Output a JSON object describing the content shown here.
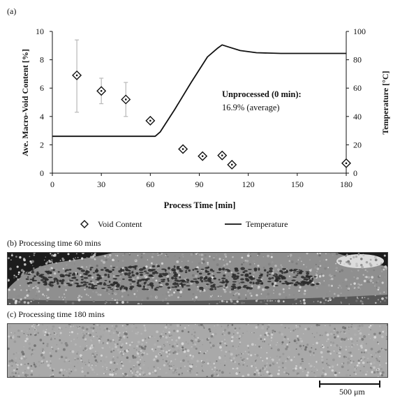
{
  "chart_data": {
    "type": "scatter+line",
    "panel_label": "(a)",
    "x": {
      "label": "Process Time [min]",
      "lim": [
        0,
        180
      ],
      "ticks": [
        0,
        30,
        60,
        90,
        120,
        150,
        180
      ]
    },
    "y_left": {
      "label": "Ave. Macro-Void Content [%]",
      "lim": [
        0,
        10
      ],
      "ticks": [
        0,
        2,
        4,
        6,
        8,
        10
      ]
    },
    "y_right": {
      "label": "Temperature [°C]",
      "lim": [
        0,
        100
      ],
      "ticks": [
        0,
        20,
        40,
        60,
        80,
        100
      ]
    },
    "series": [
      {
        "name": "Void Content",
        "kind": "scatter",
        "marker": "diamond",
        "axis": "left",
        "points": [
          {
            "x": 15,
            "y": 6.9,
            "err_low": 4.3,
            "err_high": 9.4
          },
          {
            "x": 30,
            "y": 5.8,
            "err_low": 4.9,
            "err_high": 6.7
          },
          {
            "x": 45,
            "y": 5.2,
            "err_low": 4.0,
            "err_high": 6.4
          },
          {
            "x": 60,
            "y": 3.7
          },
          {
            "x": 80,
            "y": 1.7
          },
          {
            "x": 92,
            "y": 1.2
          },
          {
            "x": 104,
            "y": 1.25
          },
          {
            "x": 110,
            "y": 0.6
          },
          {
            "x": 180,
            "y": 0.7
          }
        ]
      },
      {
        "name": "Temperature",
        "kind": "line",
        "axis": "right",
        "points": [
          [
            0,
            26
          ],
          [
            63,
            26
          ],
          [
            66,
            29
          ],
          [
            75,
            45
          ],
          [
            85,
            64
          ],
          [
            95,
            82
          ],
          [
            101,
            88
          ],
          [
            104,
            90.5
          ],
          [
            108,
            89
          ],
          [
            115,
            86.5
          ],
          [
            125,
            85
          ],
          [
            140,
            84.5
          ],
          [
            180,
            84.5
          ]
        ]
      }
    ],
    "annotation": {
      "title": "Unprocessed (0 min):",
      "value": "16.9% (average)"
    }
  },
  "panels": {
    "b_label": "(b)  Processing time 60 mins",
    "c_label": "(c)  Processing time 180 mins"
  },
  "scale_bar": {
    "label": "500 μm"
  },
  "colors": {
    "ink": "#111111",
    "errorbar": "#b8b8b8",
    "micro_dark": "#1c1c1c",
    "micro_mid": "#8c8c8c",
    "micro_light": "#b5b5b5"
  }
}
